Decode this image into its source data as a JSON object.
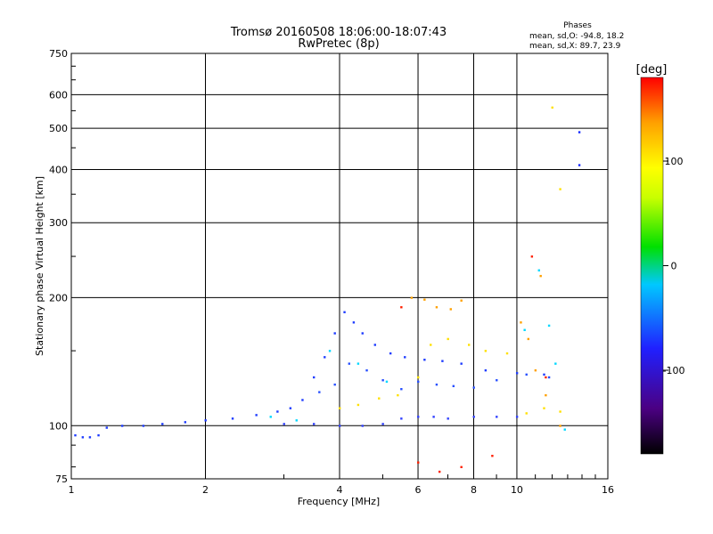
{
  "header": {
    "title": "Tromsø 20160508 18:06:00-18:07:43",
    "subtitle": "RwPretec (8p)",
    "phase_title": "Phases",
    "phase_line1": "mean, sd,O: -94.8, 18.2",
    "phase_line2": "mean, sd,X:  89.7, 23.9"
  },
  "chart_data": {
    "type": "scatter",
    "xlabel": "Frequency [MHz]",
    "ylabel": "Stationary phase Virtual Height [km]",
    "x_scale": "log",
    "y_scale": "log",
    "xlim": [
      1,
      16
    ],
    "ylim": [
      75,
      750
    ],
    "x_ticks": [
      1,
      2,
      4,
      6,
      8,
      10,
      16
    ],
    "y_ticks": [
      75,
      100,
      200,
      300,
      400,
      500,
      600,
      750
    ],
    "grid": true,
    "colorbar": {
      "label": "[deg]",
      "range": [
        -180,
        180
      ],
      "ticks": [
        100,
        0,
        -100
      ],
      "colors": [
        "#000000",
        "#4b0082",
        "#2020ff",
        "#00c8ff",
        "#00e000",
        "#c8ff00",
        "#ffff00",
        "#ffa000",
        "#ff0000"
      ]
    },
    "series": [
      {
        "color": "#1e3cff",
        "points": [
          [
            1.02,
            95
          ],
          [
            1.06,
            94
          ],
          [
            1.1,
            94
          ],
          [
            1.15,
            95
          ],
          [
            1.2,
            99
          ],
          [
            1.3,
            100
          ],
          [
            1.45,
            100
          ],
          [
            1.6,
            101
          ],
          [
            1.8,
            102
          ],
          [
            2.0,
            103
          ],
          [
            2.3,
            104
          ],
          [
            2.6,
            106
          ],
          [
            2.9,
            108
          ],
          [
            3.1,
            110
          ],
          [
            3.3,
            115
          ],
          [
            3.5,
            130
          ],
          [
            3.7,
            145
          ],
          [
            3.9,
            165
          ],
          [
            4.1,
            185
          ],
          [
            4.3,
            175
          ],
          [
            4.5,
            165
          ],
          [
            4.8,
            155
          ],
          [
            5.2,
            148
          ],
          [
            5.6,
            145
          ],
          [
            6.2,
            143
          ],
          [
            6.8,
            142
          ],
          [
            7.5,
            140
          ],
          [
            8.5,
            135
          ],
          [
            10.0,
            133
          ],
          [
            11.5,
            132
          ]
        ]
      },
      {
        "color": "#2850ff",
        "points": [
          [
            3.6,
            120
          ],
          [
            3.9,
            125
          ],
          [
            4.2,
            140
          ],
          [
            4.6,
            135
          ],
          [
            5.0,
            128
          ],
          [
            5.5,
            122
          ],
          [
            6.0,
            127
          ],
          [
            6.6,
            125
          ],
          [
            7.2,
            124
          ],
          [
            8.0,
            123
          ],
          [
            9.0,
            128
          ],
          [
            10.5,
            132
          ],
          [
            11.8,
            130
          ]
        ]
      },
      {
        "color": "#3040ff",
        "points": [
          [
            3.0,
            101
          ],
          [
            3.5,
            101
          ],
          [
            4.0,
            100
          ],
          [
            4.5,
            100
          ],
          [
            5.0,
            101
          ],
          [
            5.5,
            104
          ],
          [
            6.0,
            105
          ],
          [
            6.5,
            105
          ],
          [
            7.0,
            104
          ],
          [
            8.0,
            105
          ],
          [
            9.0,
            105
          ],
          [
            10.0,
            105
          ]
        ]
      },
      {
        "color": "#ffe000",
        "points": [
          [
            4.0,
            110
          ],
          [
            4.4,
            112
          ],
          [
            4.9,
            116
          ],
          [
            5.4,
            118
          ],
          [
            6.0,
            130
          ],
          [
            6.4,
            155
          ],
          [
            7.0,
            160
          ],
          [
            7.8,
            155
          ],
          [
            8.5,
            150
          ],
          [
            9.5,
            148
          ],
          [
            10.5,
            107
          ],
          [
            11.5,
            110
          ],
          [
            12.5,
            108
          ],
          [
            12.5,
            360
          ],
          [
            12.0,
            560
          ]
        ]
      },
      {
        "color": "#ffa000",
        "points": [
          [
            5.8,
            200
          ],
          [
            6.2,
            198
          ],
          [
            6.6,
            190
          ],
          [
            7.1,
            188
          ],
          [
            7.5,
            197
          ],
          [
            10.2,
            175
          ],
          [
            10.6,
            160
          ],
          [
            11.3,
            225
          ],
          [
            11.0,
            135
          ],
          [
            11.6,
            118
          ],
          [
            12.5,
            100
          ]
        ]
      },
      {
        "color": "#00d8ff",
        "points": [
          [
            2.8,
            105
          ],
          [
            3.2,
            103
          ],
          [
            3.8,
            150
          ],
          [
            4.4,
            140
          ],
          [
            5.1,
            127
          ],
          [
            10.4,
            168
          ],
          [
            11.2,
            232
          ],
          [
            11.8,
            172
          ],
          [
            12.2,
            140
          ],
          [
            12.8,
            98
          ]
        ]
      },
      {
        "color": "#ff2000",
        "points": [
          [
            5.5,
            190
          ],
          [
            6.0,
            82
          ],
          [
            6.7,
            78
          ],
          [
            7.5,
            80
          ],
          [
            8.8,
            85
          ],
          [
            10.8,
            250
          ],
          [
            11.6,
            130
          ]
        ]
      },
      {
        "color": "#1428ff",
        "points": [
          [
            13.8,
            490
          ],
          [
            13.8,
            410
          ]
        ]
      }
    ]
  }
}
